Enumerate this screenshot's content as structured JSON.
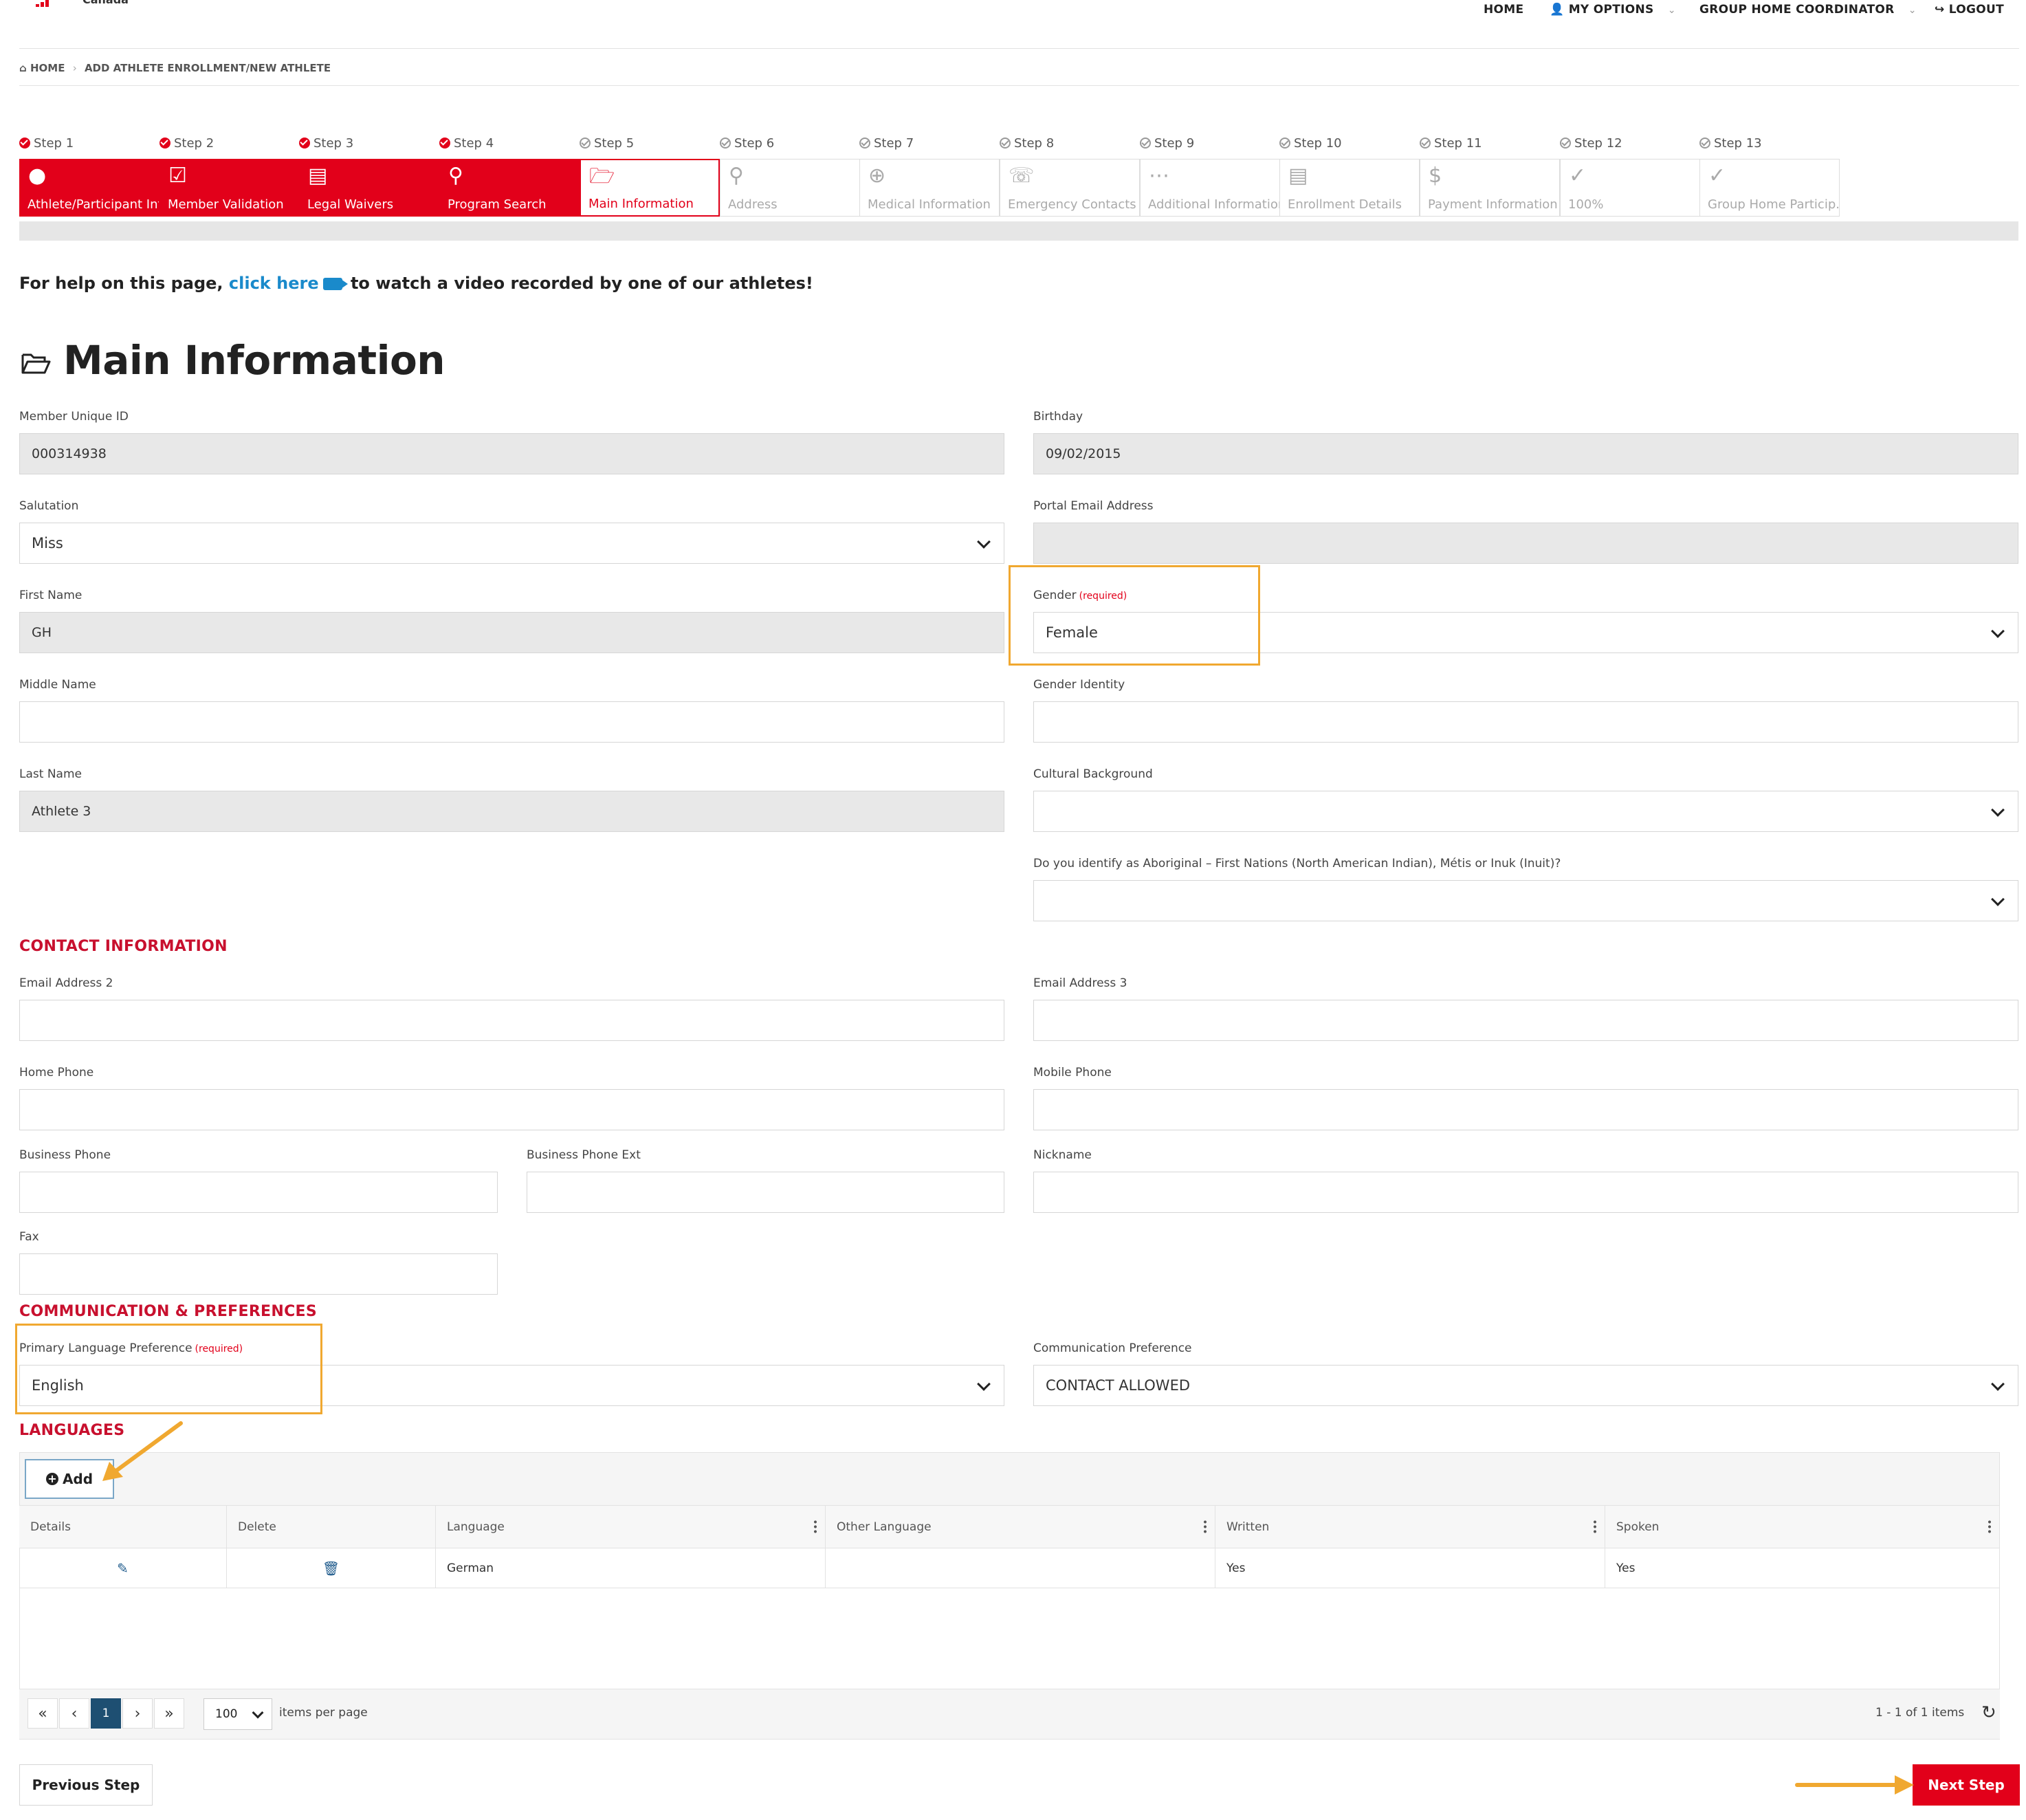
{
  "brand": {
    "logo_text": "Canada"
  },
  "nav": {
    "home": "HOME",
    "my_options": "MY OPTIONS",
    "role": "GROUP HOME COORDINATOR",
    "logout": "LOGOUT"
  },
  "breadcrumb": {
    "home": "HOME",
    "current": "ADD ATHLETE ENROLLMENT/NEW ATHLETE"
  },
  "steps": [
    {
      "head": "Step 1",
      "label": "Athlete/Participant Info",
      "icon": "user-icon",
      "state": "done"
    },
    {
      "head": "Step 2",
      "label": "Member Validation",
      "icon": "checkbox-icon",
      "state": "done"
    },
    {
      "head": "Step 3",
      "label": "Legal Waivers",
      "icon": "document-list-icon",
      "state": "done"
    },
    {
      "head": "Step 4",
      "label": "Program Search",
      "icon": "search-icon",
      "state": "done"
    },
    {
      "head": "Step 5",
      "label": "Main Information",
      "icon": "folder-open-icon",
      "state": "current"
    },
    {
      "head": "Step 6",
      "label": "Address",
      "icon": "map-pin-icon",
      "state": "todo"
    },
    {
      "head": "Step 7",
      "label": "Medical Information",
      "icon": "plus-circle-icon",
      "state": "todo"
    },
    {
      "head": "Step 8",
      "label": "Emergency Contacts",
      "icon": "phone-icon",
      "state": "todo"
    },
    {
      "head": "Step 9",
      "label": "Additional Information",
      "icon": "more-icon",
      "state": "todo"
    },
    {
      "head": "Step 10",
      "label": "Enrollment Details",
      "icon": "document-icon",
      "state": "todo"
    },
    {
      "head": "Step 11",
      "label": "Payment Information",
      "icon": "dollar-icon",
      "state": "todo"
    },
    {
      "head": "Step 12",
      "label": "100%",
      "icon": "check-circle-icon",
      "state": "todo"
    },
    {
      "head": "Step 13",
      "label": "Group Home Particip...",
      "icon": "check-circle-icon",
      "state": "todo"
    }
  ],
  "help": {
    "prefix": "For help on this page,",
    "link": "click here",
    "suffix": "to watch a video recorded by one of our athletes!"
  },
  "page_title": "Main Information",
  "form": {
    "member_id": {
      "label": "Member Unique ID",
      "value": "000314938"
    },
    "birthday": {
      "label": "Birthday",
      "value": "09/02/2015"
    },
    "salutation": {
      "label": "Salutation",
      "value": "Miss"
    },
    "portal_email": {
      "label": "Portal Email Address",
      "value": ""
    },
    "first_name": {
      "label": "First Name",
      "value": "GH"
    },
    "gender": {
      "label": "Gender",
      "required": "(required)",
      "value": "Female"
    },
    "middle_name": {
      "label": "Middle Name",
      "value": ""
    },
    "gender_identity": {
      "label": "Gender Identity",
      "value": ""
    },
    "last_name": {
      "label": "Last Name",
      "value": "Athlete 3"
    },
    "cultural_background": {
      "label": "Cultural Background",
      "value": ""
    },
    "aboriginal": {
      "label": "Do you identify as Aboriginal – First Nations (North American Indian), Métis or Inuk (Inuit)?",
      "value": ""
    }
  },
  "contact": {
    "title": "CONTACT INFORMATION",
    "email2": {
      "label": "Email Address 2",
      "value": ""
    },
    "email3": {
      "label": "Email Address 3",
      "value": ""
    },
    "home_phone": {
      "label": "Home Phone",
      "value": ""
    },
    "mobile_phone": {
      "label": "Mobile Phone",
      "value": ""
    },
    "business_phone": {
      "label": "Business Phone",
      "value": ""
    },
    "business_ext": {
      "label": "Business Phone Ext",
      "value": ""
    },
    "nickname": {
      "label": "Nickname",
      "value": ""
    },
    "fax": {
      "label": "Fax",
      "value": ""
    }
  },
  "comm": {
    "title": "COMMUNICATION & PREFERENCES",
    "primary_language": {
      "label": "Primary Language Preference",
      "required": "(required)",
      "value": "English"
    },
    "comm_pref": {
      "label": "Communication Preference",
      "value": "CONTACT ALLOWED"
    }
  },
  "languages": {
    "title": "LANGUAGES",
    "add_label": "Add",
    "columns": [
      "Details",
      "Delete",
      "Language",
      "Other Language",
      "Written",
      "Spoken"
    ],
    "rows": [
      {
        "language": "German",
        "other": "",
        "written": "Yes",
        "spoken": "Yes"
      }
    ],
    "pager": {
      "page": "1",
      "page_size": "100",
      "per_page_label": "items per page",
      "info": "1 - 1 of 1 items"
    }
  },
  "buttons": {
    "previous": "Previous Step",
    "next": "Next Step"
  },
  "colors": {
    "brand_red": "#e2001a",
    "section_red": "#c8102e",
    "highlight": "#f0a830",
    "link_blue": "#1a8acb"
  }
}
